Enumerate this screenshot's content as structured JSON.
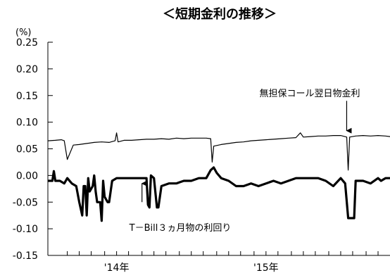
{
  "chart_data": {
    "type": "line",
    "title": "＜短期金利の推移＞",
    "unit_label": "(%)",
    "ylim": [
      -0.15,
      0.25
    ],
    "y_ticks": [
      "0.25",
      "0.20",
      "0.15",
      "0.10",
      "0.05",
      "0.00",
      "-0.05",
      "-0.10",
      "-0.15"
    ],
    "y_tick_values": [
      0.25,
      0.2,
      0.15,
      0.1,
      0.05,
      0.0,
      -0.05,
      -0.1,
      -0.15
    ],
    "xlim": [
      2013.79,
      2016.08
    ],
    "x_tick_positions": [
      2013.92,
      2014.0,
      2014.08,
      2014.17,
      2014.25,
      2014.33,
      2014.42,
      2014.5,
      2014.58,
      2014.67,
      2014.75,
      2014.83,
      2014.92,
      2015.0,
      2015.08,
      2015.17,
      2015.25,
      2015.33,
      2015.42,
      2015.5,
      2015.58,
      2015.67,
      2015.75,
      2015.83,
      2015.92,
      2016.0
    ],
    "x_labels": [
      {
        "text": "'14年",
        "x": 2014.25
      },
      {
        "text": "'15年",
        "x": 2015.25
      }
    ],
    "series": [
      {
        "name": "無担保コール翌日物金利",
        "line_width": 1.2,
        "x": [
          2013.79,
          2013.84,
          2013.88,
          2013.9,
          2013.92,
          2013.96,
          2014.0,
          2014.05,
          2014.1,
          2014.15,
          2014.2,
          2014.24,
          2014.25,
          2014.26,
          2014.3,
          2014.35,
          2014.4,
          2014.45,
          2014.5,
          2014.55,
          2014.6,
          2014.65,
          2014.7,
          2014.75,
          2014.8,
          2014.85,
          2014.88,
          2014.89,
          2014.9,
          2014.95,
          2015.0,
          2015.05,
          2015.1,
          2015.15,
          2015.2,
          2015.25,
          2015.3,
          2015.35,
          2015.4,
          2015.45,
          2015.48,
          2015.5,
          2015.55,
          2015.6,
          2015.65,
          2015.7,
          2015.75,
          2015.79,
          2015.8,
          2015.81,
          2015.85,
          2015.9,
          2015.95,
          2016.0,
          2016.05,
          2016.08
        ],
        "y": [
          0.065,
          0.066,
          0.067,
          0.065,
          0.03,
          0.057,
          0.058,
          0.06,
          0.062,
          0.063,
          0.062,
          0.065,
          0.08,
          0.063,
          0.066,
          0.066,
          0.067,
          0.068,
          0.068,
          0.069,
          0.068,
          0.07,
          0.069,
          0.07,
          0.07,
          0.07,
          0.069,
          0.025,
          0.055,
          0.058,
          0.06,
          0.062,
          0.063,
          0.065,
          0.066,
          0.067,
          0.068,
          0.069,
          0.07,
          0.071,
          0.08,
          0.072,
          0.073,
          0.074,
          0.074,
          0.075,
          0.075,
          0.072,
          0.01,
          0.072,
          0.074,
          0.075,
          0.074,
          0.075,
          0.074,
          0.073
        ]
      },
      {
        "name": "T－Bill３ヵ月物の利回り",
        "line_width": 3.2,
        "x": [
          2013.79,
          2013.82,
          2013.83,
          2013.84,
          2013.87,
          2013.9,
          2013.92,
          2013.95,
          2013.98,
          2014.0,
          2014.02,
          2014.03,
          2014.04,
          2014.05,
          2014.06,
          2014.07,
          2014.09,
          2014.1,
          2014.11,
          2014.12,
          2014.14,
          2014.15,
          2014.16,
          2014.17,
          2014.19,
          2014.2,
          2014.22,
          2014.25,
          2014.3,
          2014.33,
          2014.38,
          2014.42,
          2014.45,
          2014.46,
          2014.47,
          2014.48,
          2014.5,
          2014.52,
          2014.53,
          2014.55,
          2014.6,
          2014.65,
          2014.7,
          2014.75,
          2014.8,
          2014.85,
          2014.88,
          2014.9,
          2014.92,
          2014.95,
          2015.0,
          2015.05,
          2015.1,
          2015.15,
          2015.2,
          2015.25,
          2015.3,
          2015.35,
          2015.4,
          2015.45,
          2015.5,
          2015.52,
          2015.55,
          2015.6,
          2015.65,
          2015.7,
          2015.75,
          2015.78,
          2015.8,
          2015.82,
          2015.84,
          2015.85,
          2015.9,
          2015.95,
          2016.0,
          2016.02,
          2016.05,
          2016.08
        ],
        "y": [
          -0.01,
          -0.01,
          0.008,
          -0.01,
          -0.01,
          -0.015,
          -0.005,
          -0.015,
          -0.02,
          -0.05,
          -0.075,
          -0.02,
          -0.02,
          -0.075,
          -0.005,
          -0.03,
          -0.02,
          0.0,
          -0.03,
          -0.05,
          -0.05,
          -0.085,
          -0.01,
          -0.04,
          -0.05,
          -0.05,
          -0.01,
          -0.005,
          -0.005,
          -0.005,
          -0.005,
          -0.005,
          -0.005,
          -0.055,
          -0.06,
          0.0,
          -0.005,
          -0.06,
          -0.06,
          -0.02,
          -0.015,
          -0.015,
          -0.01,
          -0.01,
          -0.005,
          -0.005,
          0.01,
          0.015,
          0.005,
          -0.005,
          -0.01,
          -0.02,
          -0.02,
          -0.015,
          -0.02,
          -0.015,
          -0.01,
          -0.015,
          -0.01,
          -0.005,
          -0.005,
          -0.005,
          -0.005,
          -0.005,
          -0.01,
          -0.02,
          -0.005,
          -0.015,
          -0.08,
          -0.08,
          -0.08,
          -0.01,
          -0.01,
          -0.015,
          -0.005,
          -0.01,
          -0.005,
          -0.005
        ]
      }
    ],
    "annotations": [
      {
        "text": "無担保コール翌日物金利",
        "arrow_x": 2015.79,
        "arrow_from_y": 0.14,
        "arrow_to_y": 0.084
      },
      {
        "text": "T－Bill３ヵ月物の利回り",
        "arrow_x": 2014.42,
        "arrow_from_y": -0.05,
        "arrow_to_y": -0.015
      }
    ],
    "grid": false,
    "legend": "none"
  }
}
